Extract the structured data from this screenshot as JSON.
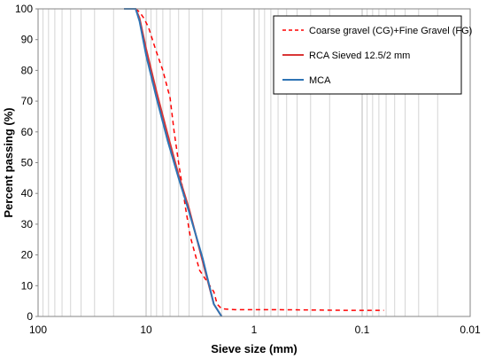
{
  "chart_data": {
    "type": "line",
    "xlabel": "Sieve size (mm)",
    "ylabel": "Percent passing (%)",
    "x_scale": "log",
    "x_reversed": true,
    "xlim": [
      100,
      0.01
    ],
    "ylim": [
      0,
      100
    ],
    "x_ticks": [
      100,
      10,
      1,
      0.1,
      0.01
    ],
    "x_tick_labels": [
      "100",
      "10",
      "1",
      "0.1",
      "0.01"
    ],
    "y_ticks": [
      0,
      10,
      20,
      30,
      40,
      50,
      60,
      70,
      80,
      90,
      100
    ],
    "y_tick_labels": [
      "0",
      "10",
      "20",
      "30",
      "40",
      "50",
      "60",
      "70",
      "80",
      "90",
      "100"
    ],
    "grid": "x-minor-and-major",
    "legend_position": "top-right",
    "series": [
      {
        "name": "Coarse gravel (CG)+Fine Gravel (FG)",
        "color": "#ff0000",
        "dash": "dashed",
        "x": [
          12.5,
          11.5,
          10.5,
          9.5,
          8.2,
          7,
          6,
          5.5,
          5,
          4.75,
          4.3,
          3.9,
          3.5,
          3.2,
          2.8,
          2.36,
          2.2,
          2,
          1.5,
          1,
          0.6,
          0.3,
          0.15,
          0.063
        ],
        "y": [
          100,
          99,
          97,
          94,
          87,
          80,
          71,
          60,
          50,
          45,
          35,
          26,
          20,
          15,
          12,
          8,
          4,
          2.5,
          2.2,
          2.2,
          2.2,
          2.1,
          2,
          2
        ]
      },
      {
        "name": "RCA Sieved 12.5/2 mm",
        "color": "#d93636",
        "dash": "solid",
        "x": [
          16,
          13,
          12.5,
          11.5,
          10,
          8,
          6.3,
          5,
          4,
          3,
          2.36,
          2
        ],
        "y": [
          100,
          100,
          100,
          97,
          87,
          73,
          59,
          46,
          35,
          18,
          4,
          0
        ]
      },
      {
        "name": "MCA",
        "color": "#2e74b5",
        "dash": "solid",
        "x": [
          16,
          13,
          12.5,
          11.5,
          10,
          8,
          6.3,
          5,
          4,
          3,
          2.36,
          2
        ],
        "y": [
          100,
          100,
          100,
          96,
          85,
          71,
          57,
          45,
          34,
          19,
          4,
          0
        ]
      }
    ]
  }
}
